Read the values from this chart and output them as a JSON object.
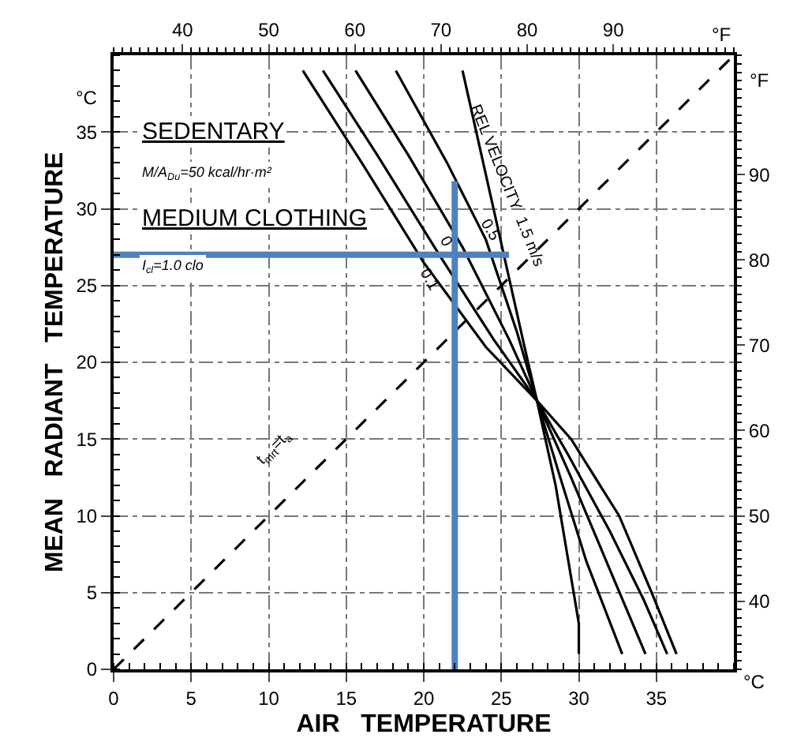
{
  "chart_data": {
    "type": "line",
    "xlabel": "AIR   TEMPERATURE",
    "ylabel": "MEAN   RADIANT   TEMPERATURE",
    "x2label": "°F",
    "y2label": "°F",
    "xlim": [
      0,
      40
    ],
    "xticks": [
      0,
      5,
      10,
      15,
      20,
      25,
      30,
      35
    ],
    "ylim": [
      0,
      40
    ],
    "yticks": [
      0,
      5,
      10,
      15,
      20,
      25,
      30,
      35
    ],
    "x2lim": [
      32,
      104
    ],
    "x2ticks": [
      40,
      50,
      60,
      70,
      80,
      90
    ],
    "y2lim": [
      32,
      104
    ],
    "y2ticks": [
      40,
      50,
      60,
      70,
      80,
      90
    ],
    "grid": true,
    "marker": "none",
    "series": [
      {
        "color": "#000000",
        "x": [
          12.2,
          16,
          20,
          24,
          27.3,
          29.5,
          32.6,
          34.7,
          36.3
        ],
        "values": [
          39,
          33,
          26.5,
          21,
          17.5,
          15,
          10,
          5,
          1
        ]
      },
      {
        "color": "#000000",
        "x": [
          13.5,
          17,
          21,
          24.5,
          27.3,
          29.3,
          32,
          34.2,
          35.7
        ],
        "values": [
          39,
          33.5,
          27,
          21.5,
          17.5,
          14,
          9,
          4.5,
          1
        ]
      },
      {
        "color": "#000000",
        "x": [
          15.6,
          19,
          22.5,
          25.5,
          27.3,
          29.5,
          32,
          34.3
        ],
        "values": [
          39,
          33.5,
          27.5,
          21.5,
          17.5,
          12.5,
          6.5,
          1
        ]
      },
      {
        "color": "#000000",
        "x": [
          18.2,
          21.5,
          24,
          26,
          27.3,
          28.8,
          30.5,
          32.8
        ],
        "values": [
          39,
          33,
          28,
          22,
          17.5,
          12.5,
          7,
          1
        ]
      },
      {
        "color": "#000000",
        "x": [
          22.5,
          24.5,
          26.5,
          27.3,
          28.5,
          29.5,
          30,
          30
        ],
        "values": [
          39,
          30,
          21,
          17.5,
          12,
          6,
          3,
          1
        ]
      },
      {
        "color": "#000000",
        "line_style": "dashed",
        "x": [
          0,
          40
        ],
        "values": [
          0,
          40
        ]
      },
      {
        "color": "#4f81bd",
        "x": [
          0,
          25.5
        ],
        "values": [
          27,
          27
        ]
      },
      {
        "color": "#4f81bd",
        "x": [
          22,
          22
        ],
        "values": [
          0,
          31.8
        ]
      }
    ],
    "annotations": [
      "SEDENTARY",
      "M/A$_{Du}$=50 kcal/hr·m²",
      "MEDIUM CLOTHING",
      "I$_{cl}$=1.0 clo",
      "°C",
      "°C",
      {
        "text": "0.1",
        "x": 20.3,
        "y": 25.3
      },
      {
        "text": "0",
        "x": 21.4,
        "y": 27.8
      },
      {
        "text": "0.5",
        "x": 24.2,
        "y": 28.6
      },
      {
        "text": "REL VELOCITY  1.5 m/s",
        "x": 24.6,
        "y": 31.5
      },
      "t$_{mrt}$=t$_{a}$"
    ]
  }
}
